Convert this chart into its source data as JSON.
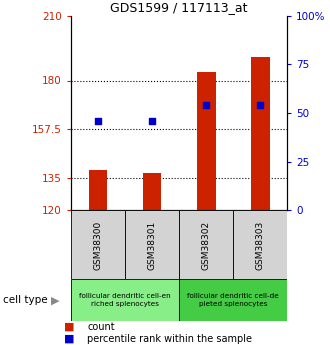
{
  "title": "GDS1599 / 117113_at",
  "samples": [
    "GSM38300",
    "GSM38301",
    "GSM38302",
    "GSM38303"
  ],
  "count_values": [
    138.5,
    137.5,
    184.0,
    191.0
  ],
  "percentile_values": [
    46,
    46,
    54,
    54
  ],
  "ylim_left": [
    120,
    210
  ],
  "ylim_right": [
    0,
    100
  ],
  "yticks_left": [
    120,
    135,
    157.5,
    180,
    210
  ],
  "yticks_right": [
    0,
    25,
    50,
    75,
    100
  ],
  "ytick_labels_left": [
    "120",
    "135",
    "157.5",
    "180",
    "210"
  ],
  "ytick_labels_right": [
    "0",
    "25",
    "50",
    "75",
    "100%"
  ],
  "bar_color": "#cc2200",
  "dot_color": "#0000cc",
  "grid_lines": [
    135,
    157.5,
    180
  ],
  "cell_type_groups": [
    {
      "label": "follicular dendritic cell-en\nriched splenocytes",
      "samples": [
        0,
        1
      ],
      "color": "#88ee88"
    },
    {
      "label": "follicular dendritic cell-de\npleted splenocytes",
      "samples": [
        2,
        3
      ],
      "color": "#44cc44"
    }
  ],
  "cell_type_label": "cell type",
  "legend_count_label": "count",
  "legend_pct_label": "percentile rank within the sample",
  "bar_bottom": 120,
  "bar_width": 0.35
}
